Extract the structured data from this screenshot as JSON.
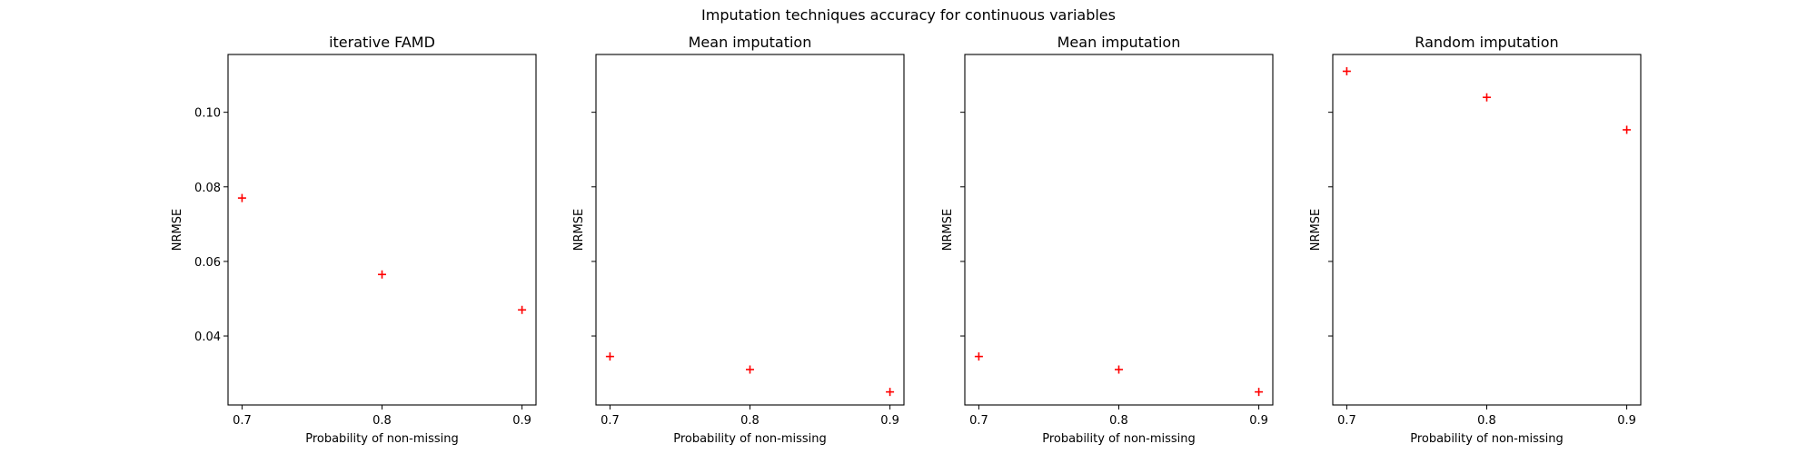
{
  "suptitle": "Imputation techniques accuracy for continuous variables",
  "marker_color": "#ff0000",
  "chart_data": [
    {
      "type": "scatter",
      "title": "iterative FAMD",
      "xlabel": "Probability of non-missing",
      "ylabel": "NRMSE",
      "x": [
        0.7,
        0.8,
        0.9
      ],
      "y": [
        0.077,
        0.0565,
        0.047
      ],
      "xticks": [
        "0.7",
        "0.8",
        "0.9"
      ],
      "yticks": [
        "0.04",
        "0.06",
        "0.08",
        "0.10"
      ],
      "show_ytick_labels": true,
      "marker": "+",
      "grid": false
    },
    {
      "type": "scatter",
      "title": "Mean imputation",
      "xlabel": "Probability of non-missing",
      "ylabel": "NRMSE",
      "x": [
        0.7,
        0.8,
        0.9
      ],
      "y": [
        0.0345,
        0.031,
        0.025
      ],
      "xticks": [
        "0.7",
        "0.8",
        "0.9"
      ],
      "yticks": [
        "0.04",
        "0.06",
        "0.08",
        "0.10"
      ],
      "show_ytick_labels": false,
      "marker": "+",
      "grid": false
    },
    {
      "type": "scatter",
      "title": "Mean imputation",
      "xlabel": "Probability of non-missing",
      "ylabel": "NRMSE",
      "x": [
        0.7,
        0.8,
        0.9
      ],
      "y": [
        0.0345,
        0.031,
        0.025
      ],
      "xticks": [
        "0.7",
        "0.8",
        "0.9"
      ],
      "yticks": [
        "0.04",
        "0.06",
        "0.08",
        "0.10"
      ],
      "show_ytick_labels": false,
      "marker": "+",
      "grid": false
    },
    {
      "type": "scatter",
      "title": "Random imputation",
      "xlabel": "Probability of non-missing",
      "ylabel": "NRMSE",
      "x": [
        0.7,
        0.8,
        0.9
      ],
      "y": [
        0.111,
        0.104,
        0.0953
      ],
      "xticks": [
        "0.7",
        "0.8",
        "0.9"
      ],
      "yticks": [
        "0.04",
        "0.06",
        "0.08",
        "0.10"
      ],
      "show_ytick_labels": false,
      "marker": "+",
      "grid": false
    }
  ]
}
